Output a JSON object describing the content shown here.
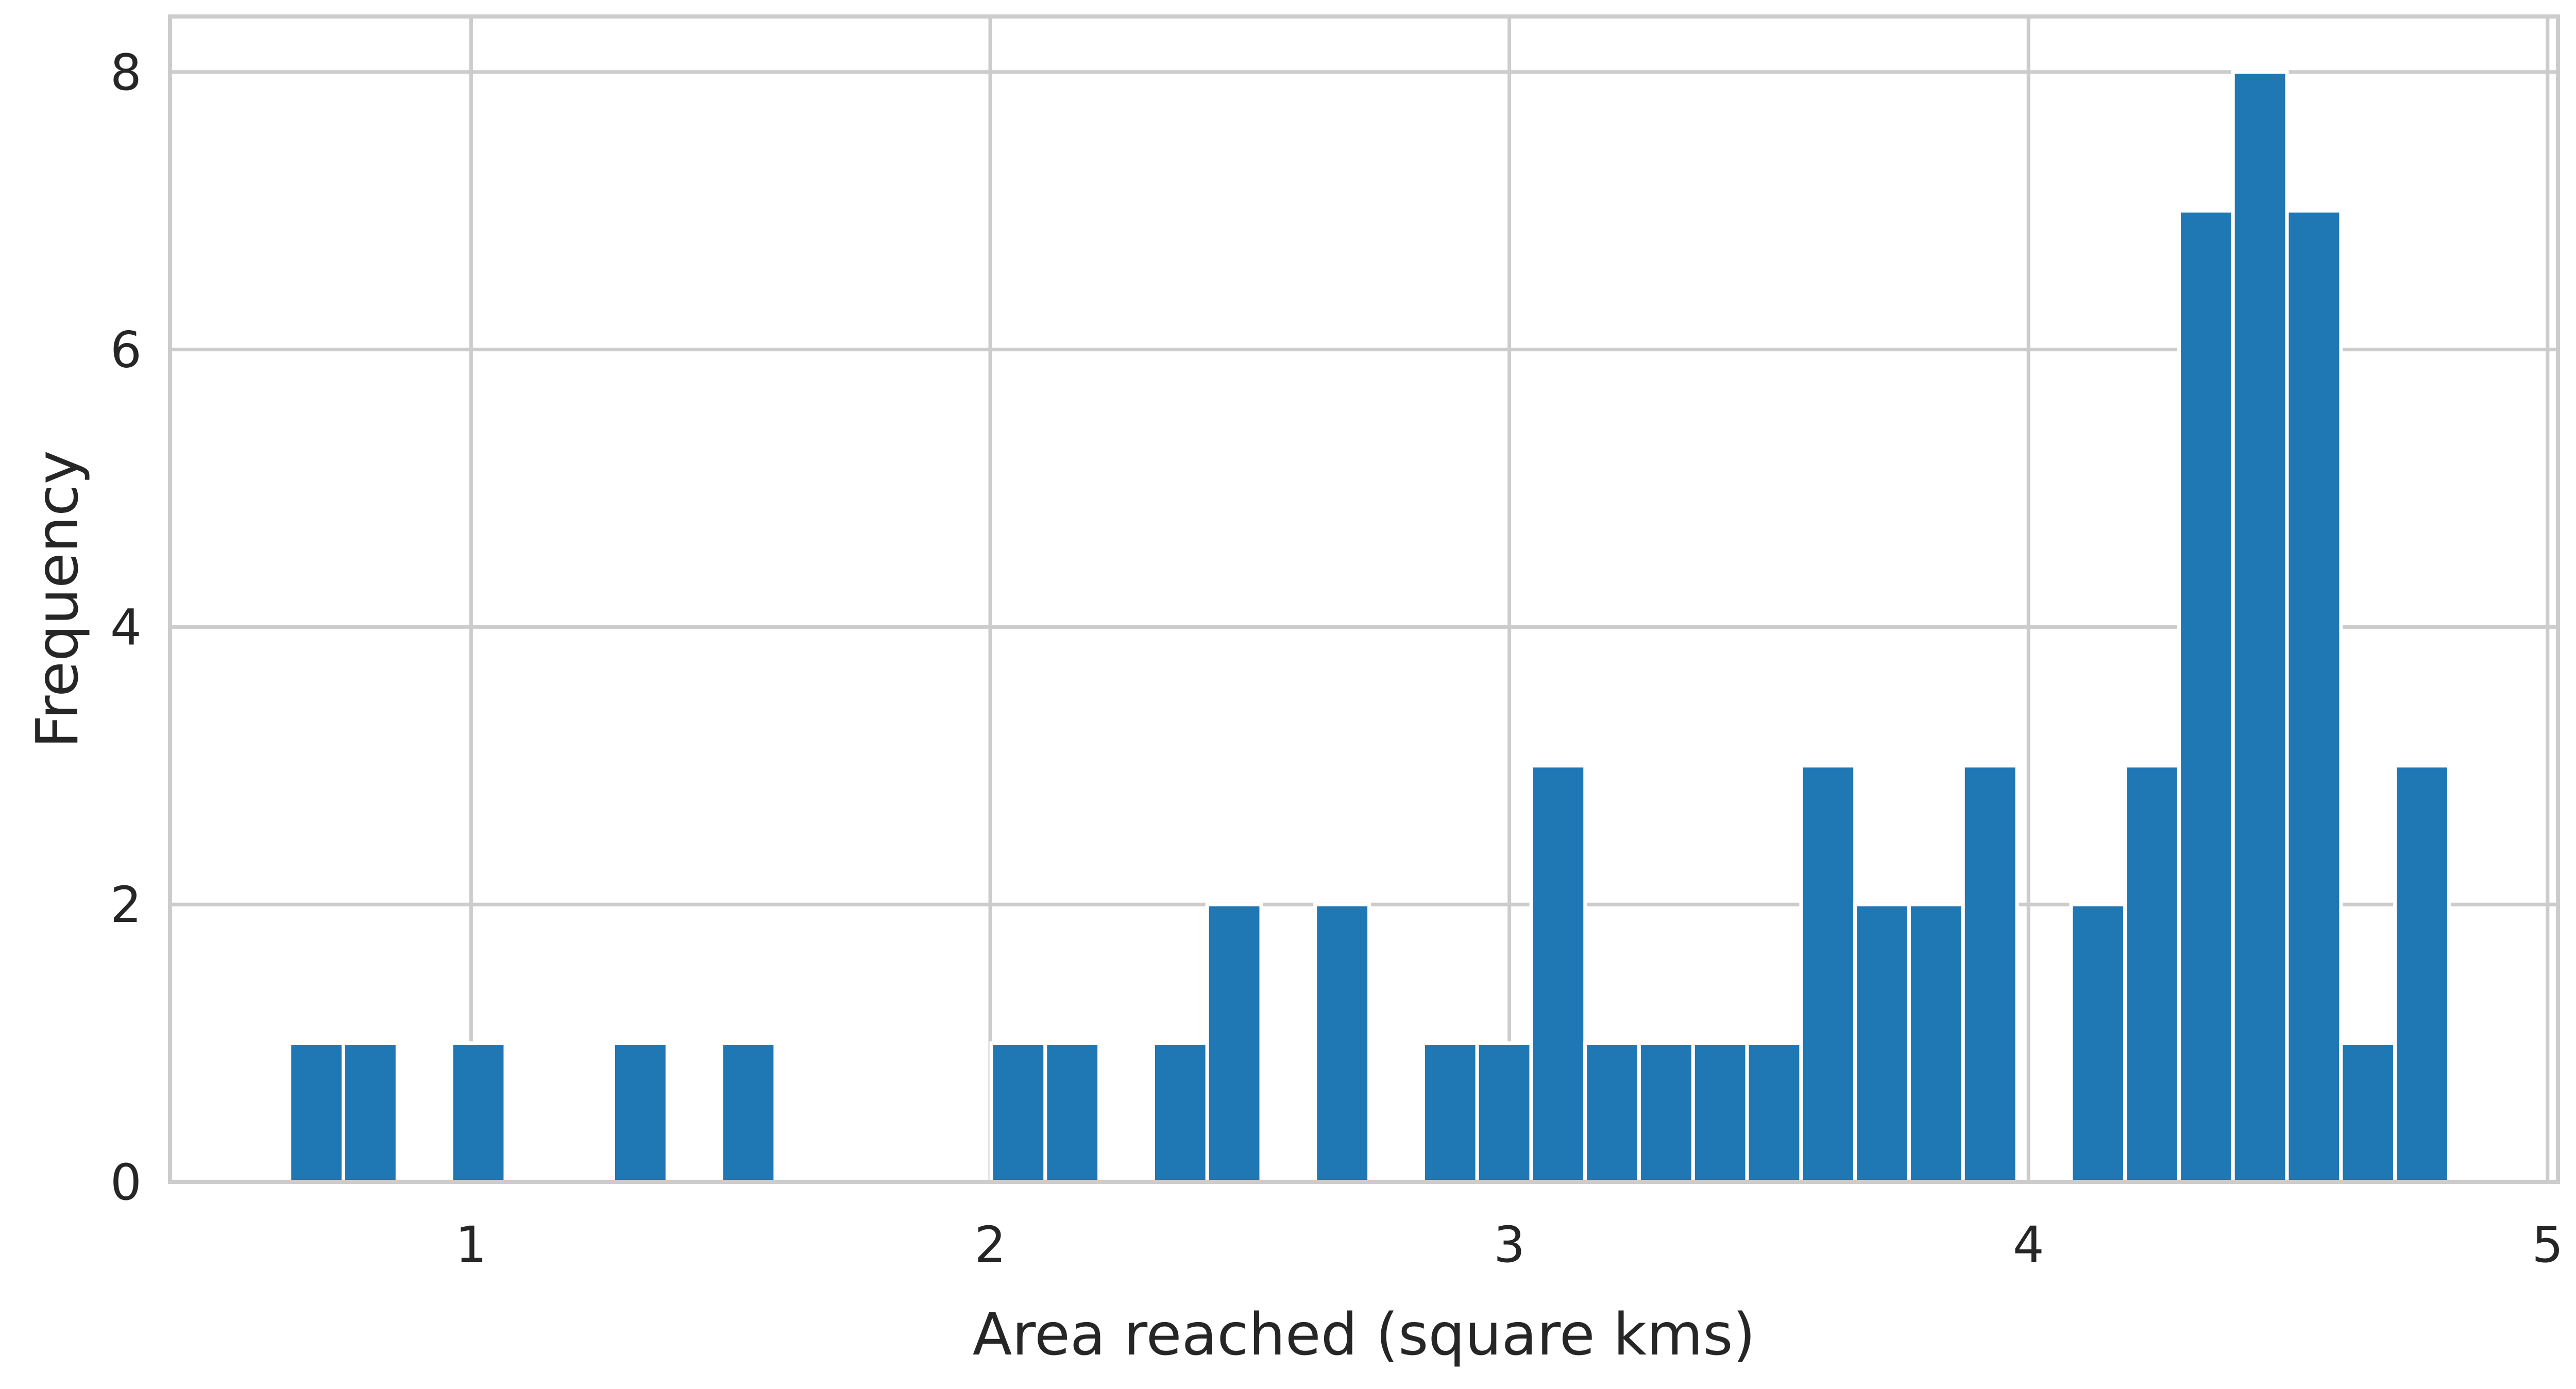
{
  "chart_data": {
    "type": "bar",
    "xlabel": "Area reached (square kms)",
    "ylabel": "Frequency",
    "xlim": [
      0.42,
      5.02
    ],
    "ylim": [
      0,
      8.4
    ],
    "x_ticks": [
      "1",
      "2",
      "3",
      "4",
      "5"
    ],
    "y_ticks": [
      "0",
      "2",
      "4",
      "6",
      "8"
    ],
    "grid": true,
    "bar_color": "#1f77b4",
    "bin_width": 0.104,
    "bins": [
      {
        "x": 0.65,
        "value": 1
      },
      {
        "x": 0.754,
        "value": 1
      },
      {
        "x": 0.858,
        "value": 0
      },
      {
        "x": 0.962,
        "value": 1
      },
      {
        "x": 1.066,
        "value": 0
      },
      {
        "x": 1.17,
        "value": 0
      },
      {
        "x": 1.274,
        "value": 1
      },
      {
        "x": 1.378,
        "value": 0
      },
      {
        "x": 1.482,
        "value": 1
      },
      {
        "x": 1.586,
        "value": 0
      },
      {
        "x": 1.69,
        "value": 0
      },
      {
        "x": 1.794,
        "value": 0
      },
      {
        "x": 1.898,
        "value": 0
      },
      {
        "x": 2.002,
        "value": 1
      },
      {
        "x": 2.106,
        "value": 1
      },
      {
        "x": 2.21,
        "value": 0
      },
      {
        "x": 2.314,
        "value": 1
      },
      {
        "x": 2.418,
        "value": 2
      },
      {
        "x": 2.522,
        "value": 0
      },
      {
        "x": 2.626,
        "value": 2
      },
      {
        "x": 2.73,
        "value": 0
      },
      {
        "x": 2.834,
        "value": 1
      },
      {
        "x": 2.938,
        "value": 1
      },
      {
        "x": 3.042,
        "value": 3
      },
      {
        "x": 3.146,
        "value": 1
      },
      {
        "x": 3.25,
        "value": 1
      },
      {
        "x": 3.354,
        "value": 1
      },
      {
        "x": 3.458,
        "value": 1
      },
      {
        "x": 3.562,
        "value": 3
      },
      {
        "x": 3.666,
        "value": 2
      },
      {
        "x": 3.77,
        "value": 2
      },
      {
        "x": 3.874,
        "value": 3
      },
      {
        "x": 3.978,
        "value": 0
      },
      {
        "x": 4.082,
        "value": 2
      },
      {
        "x": 4.186,
        "value": 3
      },
      {
        "x": 4.29,
        "value": 7
      },
      {
        "x": 4.394,
        "value": 8
      },
      {
        "x": 4.498,
        "value": 7
      },
      {
        "x": 4.602,
        "value": 1
      },
      {
        "x": 4.706,
        "value": 3
      }
    ]
  },
  "colors": {
    "grid": "#cccccc",
    "axes_edge": "#cccccc",
    "text": "#262626"
  }
}
